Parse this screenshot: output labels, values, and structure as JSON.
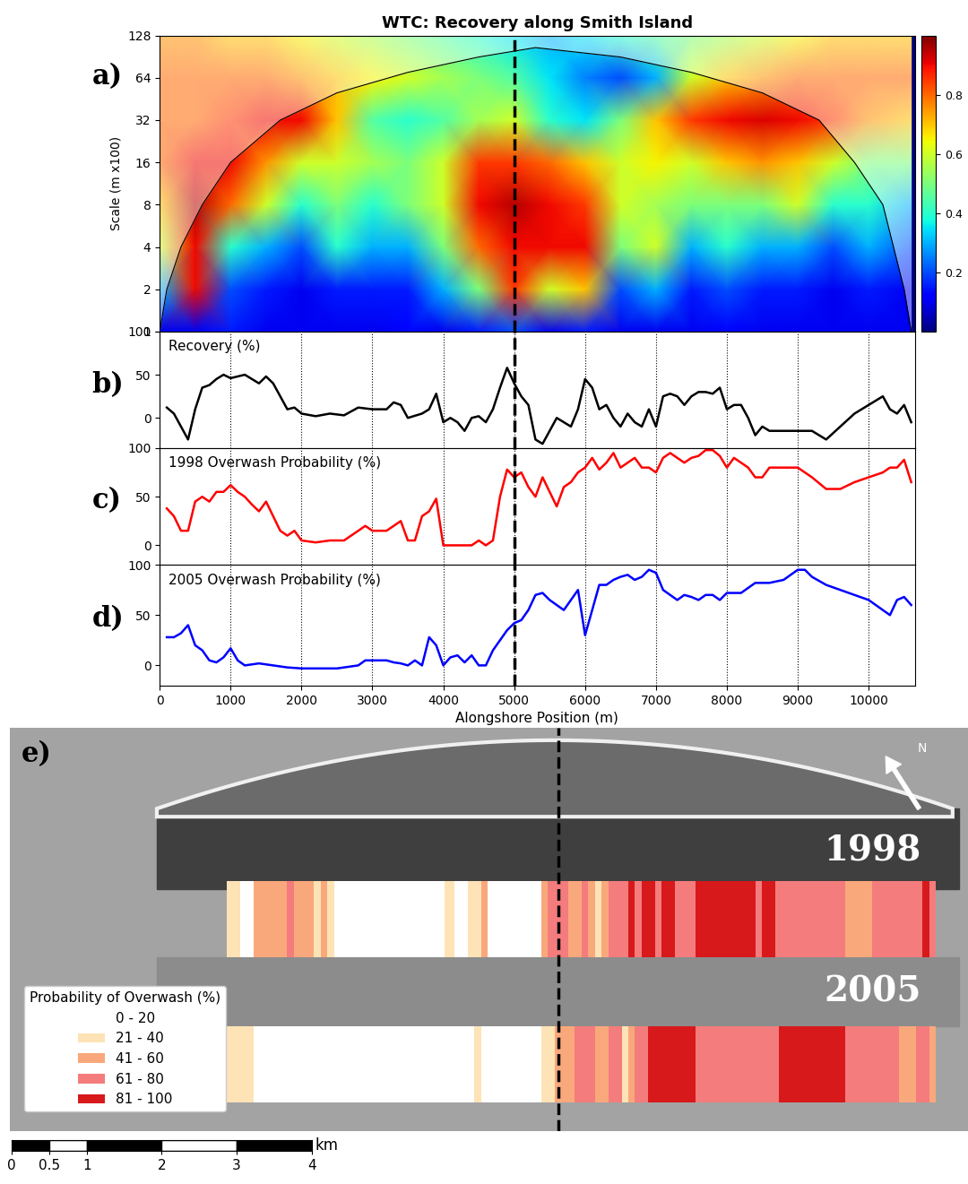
{
  "title": "WTC: Recovery along Smith Island",
  "divider_x": 5000,
  "panel_labels": [
    "a)",
    "b)",
    "c)",
    "d)",
    "e)"
  ],
  "chart_data": [
    {
      "type": "heatmap",
      "ylabel": "Scale (m x100)",
      "log": "y",
      "grid": false,
      "tick_labels": "y",
      "x": [
        0,
        500,
        1000,
        1500,
        2000,
        2500,
        3000,
        3500,
        4000,
        4500,
        5000,
        5500,
        6000,
        6500,
        7000,
        7500,
        8000,
        8500,
        9000,
        9500,
        10000,
        10600
      ],
      "y": [
        1,
        2,
        4,
        8,
        16,
        32,
        64,
        128
      ],
      "cells": [
        [
          0.1,
          0.1,
          0.15,
          0.1,
          0.1,
          0.1,
          0.1,
          0.12,
          0.1,
          0.15,
          0.2,
          0.1,
          0.15,
          0.1,
          0.1,
          0.1,
          0.12,
          0.1,
          0.1,
          0.1,
          0.1,
          0.1
        ],
        [
          0.3,
          0.9,
          0.2,
          0.15,
          0.1,
          0.15,
          0.15,
          0.15,
          0.3,
          0.5,
          0.85,
          0.6,
          0.7,
          0.2,
          0.3,
          0.15,
          0.2,
          0.15,
          0.15,
          0.1,
          0.15,
          0.1
        ],
        [
          0.6,
          0.9,
          0.4,
          0.3,
          0.2,
          0.4,
          0.3,
          0.3,
          0.5,
          0.8,
          0.9,
          0.9,
          0.9,
          0.5,
          0.6,
          0.3,
          0.4,
          0.3,
          0.3,
          0.2,
          0.3,
          0.2
        ],
        [
          0.7,
          0.95,
          0.8,
          0.6,
          0.4,
          0.5,
          0.4,
          0.5,
          0.6,
          0.9,
          0.95,
          0.9,
          0.85,
          0.6,
          0.55,
          0.5,
          0.5,
          0.5,
          0.6,
          0.4,
          0.4,
          0.3
        ],
        [
          0.8,
          0.9,
          0.9,
          0.75,
          0.6,
          0.6,
          0.55,
          0.5,
          0.6,
          0.85,
          0.85,
          0.8,
          0.7,
          0.6,
          0.65,
          0.6,
          0.7,
          0.75,
          0.7,
          0.6,
          0.5,
          0.5
        ],
        [
          0.8,
          0.8,
          0.85,
          0.9,
          0.9,
          0.7,
          0.45,
          0.4,
          0.45,
          0.55,
          0.6,
          0.4,
          0.35,
          0.5,
          0.7,
          0.85,
          0.9,
          0.92,
          0.9,
          0.85,
          0.75,
          0.7
        ],
        [
          0.8,
          0.8,
          0.8,
          0.8,
          0.75,
          0.7,
          0.65,
          0.6,
          0.55,
          0.5,
          0.45,
          0.35,
          0.25,
          0.2,
          0.3,
          0.6,
          0.7,
          0.75,
          0.8,
          0.8,
          0.8,
          0.8
        ],
        [
          0.75,
          0.75,
          0.7,
          0.7,
          0.65,
          0.6,
          0.55,
          0.5,
          0.45,
          0.4,
          0.35,
          0.3,
          0.35,
          0.4,
          0.45,
          0.5,
          0.55,
          0.6,
          0.65,
          0.7,
          0.7,
          0.7
        ]
      ],
      "xlim": [
        0,
        10650
      ],
      "ylim": [
        1,
        128
      ],
      "yticks": [
        1,
        2,
        4,
        8,
        16,
        32,
        64,
        128
      ],
      "colorbar": {
        "range": [
          0,
          1
        ],
        "ticks": [
          0.2,
          0.4,
          0.6,
          0.8
        ]
      },
      "cone_of_influence": {
        "x": [
          0,
          100,
          300,
          600,
          1000,
          1700,
          2500,
          3500,
          4500,
          5300,
          6500,
          7500,
          8500,
          9300,
          9800,
          10200,
          10500,
          10600
        ],
        "y": [
          1,
          2,
          4,
          8,
          16,
          32,
          50,
          70,
          90,
          105,
          90,
          70,
          50,
          32,
          16,
          8,
          2,
          1
        ]
      }
    },
    {
      "type": "line",
      "text": "Recovery (%)",
      "grid": "x",
      "tick_labels": "y",
      "xlim": [
        0,
        10650
      ],
      "ylim": [
        -35,
        100
      ],
      "xticks": [
        0,
        1000,
        2000,
        3000,
        4000,
        5000,
        6000,
        7000,
        8000,
        9000,
        10000
      ],
      "yticks": [
        0,
        50,
        100
      ],
      "series": [
        {
          "color": "#000000",
          "x": [
            100,
            200,
            300,
            400,
            500,
            600,
            700,
            800,
            900,
            1000,
            1100,
            1200,
            1300,
            1400,
            1500,
            1600,
            1700,
            1800,
            1900,
            2000,
            2200,
            2400,
            2600,
            2800,
            3000,
            3200,
            3300,
            3400,
            3500,
            3700,
            3800,
            3900,
            4000,
            4100,
            4200,
            4300,
            4400,
            4500,
            4600,
            4700,
            4800,
            4900,
            5000,
            5100,
            5200,
            5300,
            5400,
            5500,
            5600,
            5700,
            5800,
            5900,
            6000,
            6100,
            6200,
            6300,
            6400,
            6500,
            6600,
            6700,
            6800,
            6900,
            7000,
            7100,
            7200,
            7300,
            7400,
            7500,
            7600,
            7700,
            7800,
            7900,
            8000,
            8100,
            8200,
            8300,
            8400,
            8500,
            8600,
            8700,
            8800,
            9000,
            9200,
            9400,
            9600,
            9800,
            10000,
            10200,
            10300,
            10400,
            10500,
            10600
          ],
          "values": [
            12,
            5,
            -10,
            -25,
            10,
            35,
            38,
            45,
            50,
            46,
            48,
            50,
            45,
            40,
            48,
            40,
            25,
            10,
            12,
            5,
            2,
            5,
            3,
            12,
            10,
            10,
            18,
            15,
            0,
            5,
            10,
            28,
            -5,
            0,
            -5,
            -15,
            0,
            2,
            -5,
            10,
            35,
            58,
            40,
            25,
            15,
            -25,
            -30,
            -15,
            0,
            -5,
            -10,
            10,
            45,
            35,
            10,
            15,
            0,
            -10,
            5,
            -5,
            -10,
            10,
            -10,
            25,
            28,
            25,
            15,
            25,
            30,
            30,
            28,
            35,
            10,
            15,
            15,
            0,
            -20,
            -10,
            -15,
            -15,
            -15,
            -15,
            -15,
            -25,
            -10,
            5,
            15,
            25,
            10,
            5,
            15,
            -5
          ]
        }
      ]
    },
    {
      "type": "line",
      "text": "1998 Overwash Probability (%)",
      "grid": "x",
      "tick_labels": "y",
      "xlim": [
        0,
        10650
      ],
      "ylim": [
        -20,
        100
      ],
      "xticks": [
        0,
        1000,
        2000,
        3000,
        4000,
        5000,
        6000,
        7000,
        8000,
        9000,
        10000
      ],
      "yticks": [
        0,
        50,
        100
      ],
      "series": [
        {
          "color": "#ff0000",
          "x": [
            100,
            200,
            300,
            400,
            500,
            600,
            700,
            800,
            900,
            1000,
            1100,
            1200,
            1300,
            1400,
            1500,
            1600,
            1700,
            1800,
            1900,
            2000,
            2200,
            2400,
            2600,
            2800,
            2900,
            3000,
            3200,
            3400,
            3500,
            3600,
            3700,
            3800,
            3900,
            4000,
            4200,
            4400,
            4500,
            4600,
            4700,
            4800,
            4900,
            5000,
            5100,
            5200,
            5300,
            5400,
            5500,
            5600,
            5700,
            5800,
            5900,
            6000,
            6100,
            6200,
            6300,
            6400,
            6500,
            6600,
            6700,
            6800,
            6900,
            7000,
            7100,
            7200,
            7300,
            7400,
            7500,
            7600,
            7700,
            7800,
            7900,
            8000,
            8100,
            8200,
            8300,
            8400,
            8500,
            8600,
            8800,
            9000,
            9200,
            9400,
            9600,
            9800,
            10000,
            10200,
            10300,
            10400,
            10500,
            10600
          ],
          "values": [
            38,
            30,
            15,
            15,
            45,
            50,
            45,
            55,
            55,
            62,
            55,
            50,
            42,
            35,
            45,
            30,
            15,
            10,
            15,
            5,
            3,
            5,
            5,
            15,
            20,
            15,
            15,
            25,
            5,
            5,
            30,
            35,
            48,
            0,
            0,
            0,
            5,
            0,
            5,
            50,
            78,
            70,
            75,
            60,
            50,
            70,
            55,
            40,
            60,
            65,
            75,
            80,
            90,
            78,
            85,
            95,
            80,
            85,
            90,
            80,
            80,
            75,
            90,
            95,
            90,
            85,
            90,
            92,
            98,
            98,
            92,
            80,
            90,
            85,
            80,
            70,
            70,
            80,
            80,
            80,
            70,
            58,
            58,
            65,
            70,
            75,
            80,
            80,
            88,
            65
          ]
        }
      ]
    },
    {
      "type": "line",
      "text": "2005 Overwash Probability (%)",
      "xlabel": "Alongshore Position (m)",
      "grid": "x",
      "tick_labels": true,
      "xlim": [
        0,
        10650
      ],
      "ylim": [
        -20,
        100
      ],
      "xticks": [
        0,
        1000,
        2000,
        3000,
        4000,
        5000,
        6000,
        7000,
        8000,
        9000,
        10000
      ],
      "yticks": [
        0,
        50,
        100
      ],
      "series": [
        {
          "color": "#0000ff",
          "x": [
            100,
            200,
            300,
            400,
            500,
            600,
            700,
            800,
            900,
            1000,
            1100,
            1200,
            1400,
            1600,
            1800,
            2000,
            2500,
            2800,
            2900,
            3000,
            3100,
            3200,
            3300,
            3400,
            3500,
            3600,
            3700,
            3800,
            3900,
            4000,
            4100,
            4200,
            4300,
            4400,
            4500,
            4600,
            4700,
            4800,
            4900,
            5000,
            5100,
            5200,
            5300,
            5400,
            5500,
            5600,
            5700,
            5800,
            5900,
            6000,
            6100,
            6200,
            6300,
            6400,
            6500,
            6600,
            6700,
            6800,
            6900,
            7000,
            7100,
            7200,
            7300,
            7400,
            7500,
            7600,
            7700,
            7800,
            7900,
            8000,
            8200,
            8400,
            8600,
            8800,
            9000,
            9100,
            9200,
            9400,
            9600,
            9800,
            10000,
            10200,
            10300,
            10400,
            10500,
            10600
          ],
          "values": [
            28,
            28,
            32,
            40,
            20,
            15,
            5,
            3,
            8,
            17,
            5,
            0,
            2,
            0,
            -2,
            -3,
            -3,
            0,
            5,
            5,
            5,
            5,
            3,
            2,
            0,
            5,
            0,
            28,
            20,
            0,
            8,
            10,
            3,
            10,
            0,
            0,
            15,
            25,
            35,
            42,
            45,
            55,
            70,
            72,
            65,
            60,
            55,
            65,
            75,
            30,
            55,
            80,
            80,
            85,
            88,
            90,
            85,
            88,
            95,
            92,
            75,
            70,
            65,
            70,
            68,
            65,
            70,
            70,
            65,
            72,
            72,
            82,
            82,
            85,
            95,
            95,
            88,
            80,
            75,
            70,
            65,
            55,
            50,
            65,
            68,
            60
          ]
        }
      ]
    }
  ],
  "map": {
    "band_labels": [
      "1998",
      "2005"
    ],
    "legend_title": "Probability of Overwash (%)",
    "legend": "lower left",
    "classes": [
      "0 - 20",
      "21 - 40",
      "41 - 60",
      "61 - 80",
      "81 - 100"
    ],
    "class_bins": [
      0,
      20,
      40,
      60,
      80,
      100
    ],
    "class_colors": [
      "#ffffff",
      "#fde3b5",
      "#f9a87c",
      "#f47c7c",
      "#d7191c"
    ],
    "north": "N",
    "scale_bar": {
      "ticks": [
        0,
        0.5,
        1,
        2,
        3,
        4
      ],
      "unit": "km"
    }
  }
}
